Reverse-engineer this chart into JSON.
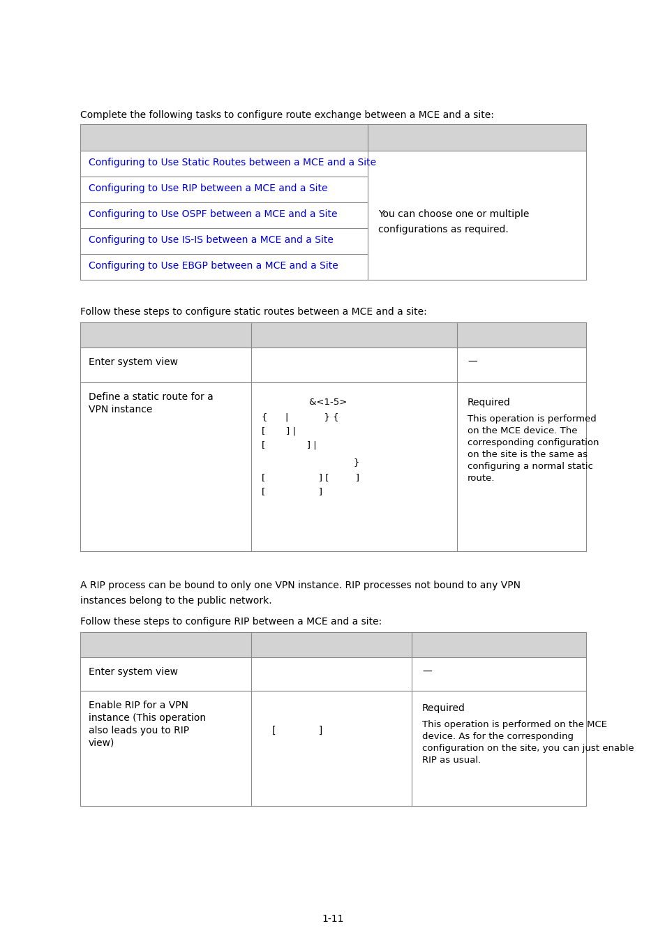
{
  "page_background": "#ffffff",
  "page_number": "1-11",
  "intro_text": "Complete the following tasks to configure route exchange between a MCE and a site:",
  "table1_links": [
    "Configuring to Use Static Routes between a MCE and a Site ",
    "Configuring to Use RIP between a MCE and a Site",
    "Configuring to Use OSPF between a MCE and a Site",
    "Configuring to Use IS-IS between a MCE and a Site",
    "Configuring to Use EBGP between a MCE and a Site"
  ],
  "table1_col2_line1": "You can choose one or multiple",
  "table1_col2_line2": "configurations as required.",
  "static_routes_intro": "Follow these steps to configure static routes between a MCE and a site:",
  "rip_para1_line1": "A RIP process can be bound to only one VPN instance. RIP processes not bound to any VPN",
  "rip_para1_line2": "instances belong to the public network.",
  "rip_para2": "Follow these steps to configure RIP between a MCE and a site:",
  "header_bg": "#d3d3d3",
  "link_color": "#0000dd",
  "text_color": "#000000",
  "font_size": 10.0,
  "line_color": "#888888"
}
